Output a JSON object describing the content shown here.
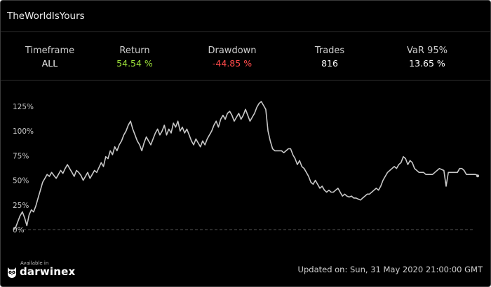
{
  "widget": {
    "title": "TheWorldIsYours"
  },
  "stats": {
    "timeframe": {
      "label": "Timeframe",
      "value": "ALL"
    },
    "return": {
      "label": "Return",
      "value": "54.54 %"
    },
    "drawdown": {
      "label": "Drawdown",
      "value": "-44.85 %"
    },
    "trades": {
      "label": "Trades",
      "value": "816"
    },
    "var": {
      "label": "VaR 95%",
      "value": "13.65 %"
    }
  },
  "colors": {
    "background": "#000000",
    "positive": "#9de23a",
    "negative": "#ff4a4a",
    "line": "#c8c8c8",
    "baseline": "#555555"
  },
  "footer": {
    "available_in": "Available in",
    "brand": "darwinex",
    "brand_icon": "owl-icon",
    "updated": "Updated on: Sun, 31 May 2020 21:00:00 GMT"
  },
  "chart_data": {
    "type": "line",
    "title": "",
    "xlabel": "",
    "ylabel": "",
    "ylim": [
      -5,
      135
    ],
    "yticks": [
      0,
      25,
      50,
      75,
      100,
      125
    ],
    "ytick_labels": [
      "0%",
      "25%",
      "50%",
      "75%",
      "100%",
      "125%"
    ],
    "grid": false,
    "baseline": 0,
    "series": [
      {
        "values": [
          0,
          2,
          8,
          14,
          18,
          12,
          4,
          15,
          20,
          18,
          24,
          32,
          40,
          48,
          52,
          56,
          54,
          58,
          55,
          52,
          56,
          60,
          57,
          62,
          66,
          62,
          58,
          54,
          60,
          58,
          55,
          50,
          54,
          58,
          52,
          56,
          60,
          58,
          63,
          68,
          64,
          74,
          72,
          80,
          76,
          84,
          80,
          86,
          90,
          96,
          100,
          106,
          110,
          102,
          96,
          90,
          86,
          80,
          88,
          94,
          90,
          86,
          92,
          98,
          102,
          96,
          100,
          106,
          96,
          102,
          98,
          108,
          104,
          110,
          100,
          104,
          98,
          102,
          96,
          90,
          86,
          92,
          88,
          84,
          90,
          86,
          92,
          96,
          100,
          106,
          110,
          104,
          112,
          116,
          112,
          118,
          120,
          116,
          110,
          114,
          118,
          112,
          116,
          122,
          116,
          110,
          114,
          118,
          124,
          128,
          130,
          126,
          122,
          100,
          90,
          82,
          80,
          80,
          80,
          80,
          78,
          80,
          82,
          82,
          76,
          72,
          66,
          70,
          64,
          62,
          58,
          54,
          48,
          46,
          50,
          46,
          42,
          44,
          40,
          38,
          40,
          38,
          38,
          40,
          42,
          38,
          34,
          36,
          34,
          33,
          34,
          32,
          32,
          31,
          30,
          32,
          34,
          36,
          36,
          38,
          40,
          42,
          40,
          44,
          50,
          54,
          58,
          60,
          62,
          64,
          62,
          66,
          68,
          74,
          72,
          66,
          70,
          68,
          62,
          60,
          58,
          58,
          58,
          56,
          56,
          56,
          56,
          58,
          60,
          62,
          61,
          60,
          44,
          58,
          58,
          58,
          58,
          58,
          62,
          62,
          60,
          56,
          56,
          56,
          56,
          56,
          55
        ]
      }
    ],
    "final_value": 54.54
  }
}
